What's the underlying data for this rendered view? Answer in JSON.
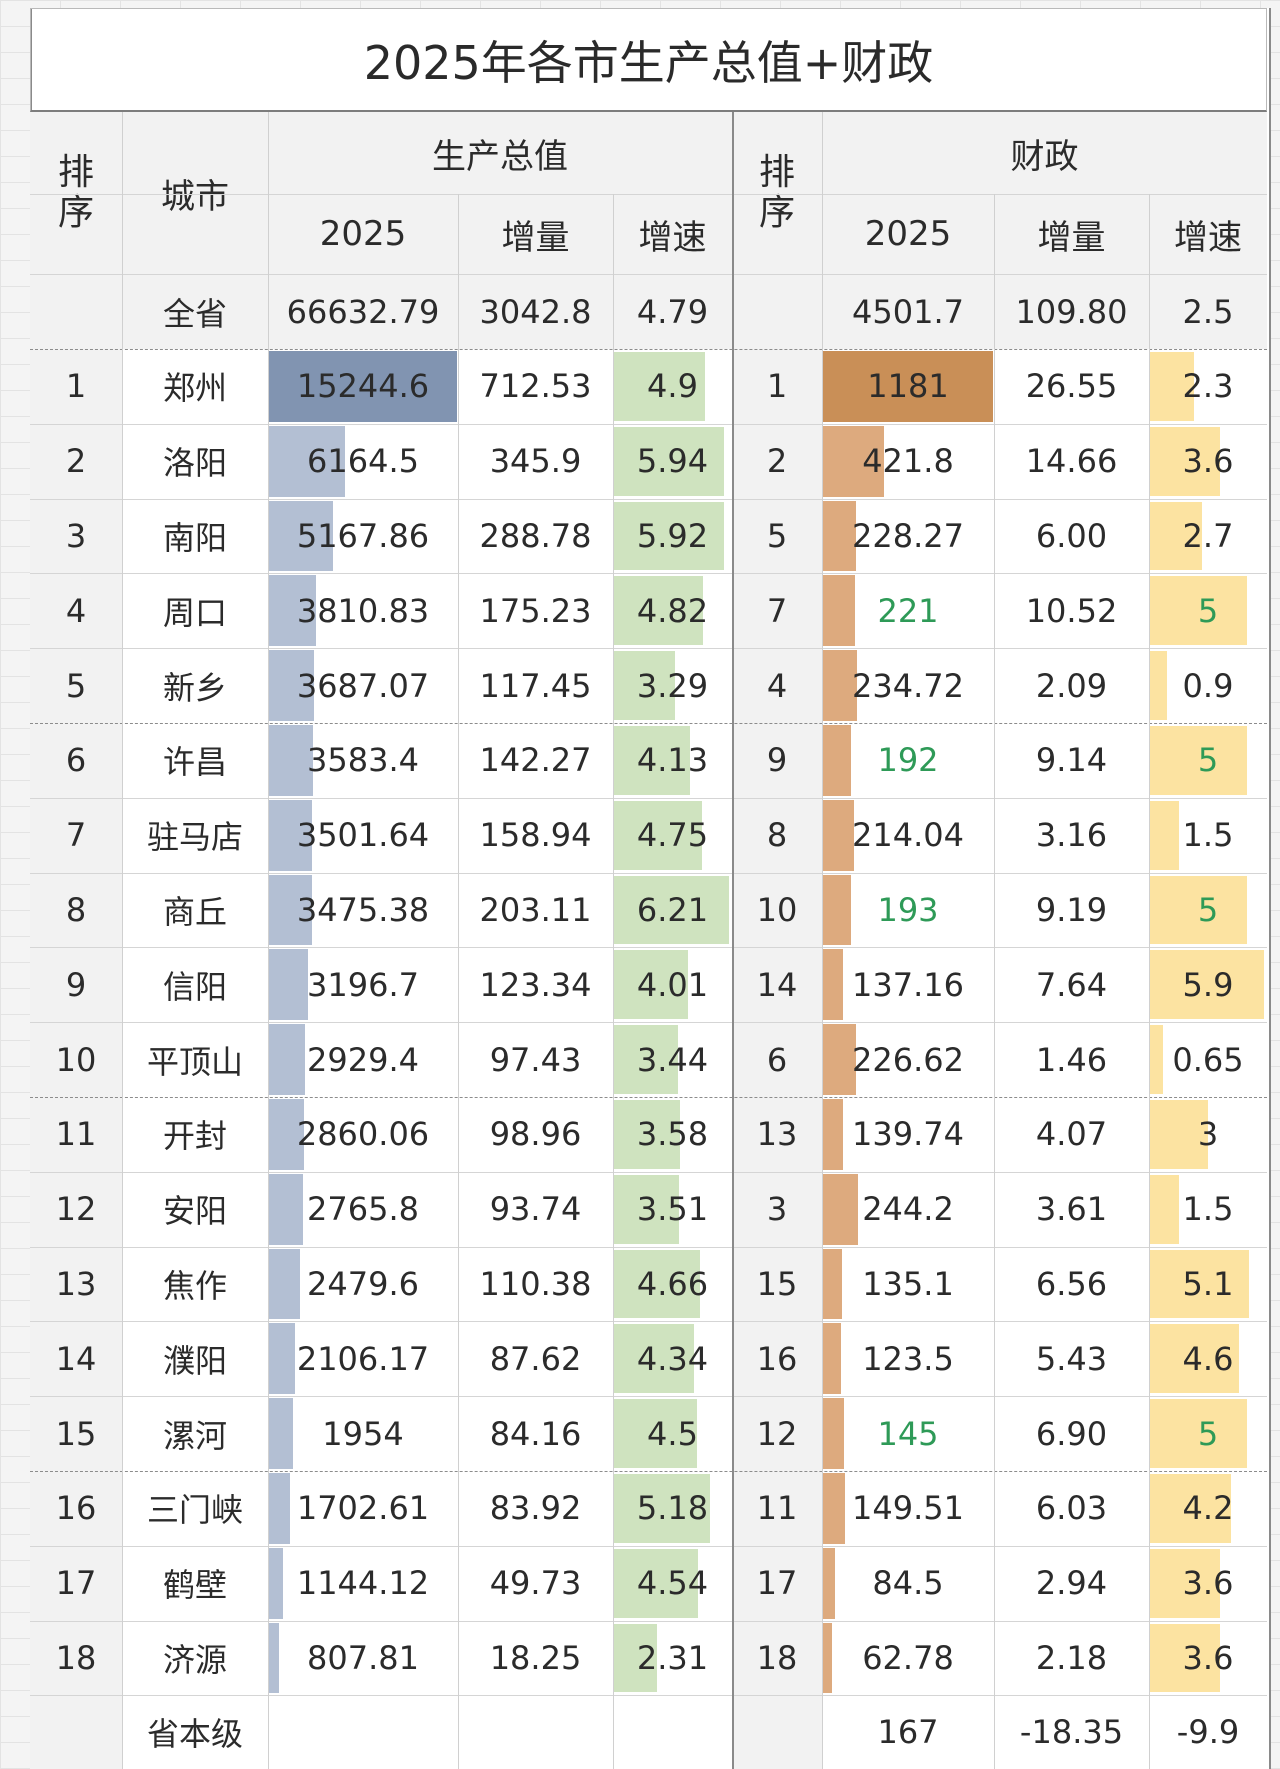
{
  "title": "2025年各市生产总值+财政",
  "header": {
    "rank": "排序",
    "city": "城市",
    "gdp_group": "生产总值",
    "fiscal_group": "财政",
    "year": "2025",
    "increment": "增量",
    "growth": "增速"
  },
  "province_total": {
    "label": "全省",
    "gdp": "66632.79",
    "gdp_inc": "3042.8",
    "gdp_growth": "4.79",
    "fiscal": "4501.7",
    "fiscal_inc": "109.80",
    "fiscal_growth": "2.5"
  },
  "rows": [
    {
      "rank": "1",
      "city": "郑州",
      "gdp": "15244.6",
      "gdp_inc": "712.53",
      "gdp_growth": "4.9",
      "f_rank": "1",
      "fiscal": "1181",
      "fiscal_inc": "26.55",
      "fiscal_growth": "2.3",
      "highlight": false
    },
    {
      "rank": "2",
      "city": "洛阳",
      "gdp": "6164.5",
      "gdp_inc": "345.9",
      "gdp_growth": "5.94",
      "f_rank": "2",
      "fiscal": "421.8",
      "fiscal_inc": "14.66",
      "fiscal_growth": "3.6",
      "highlight": false
    },
    {
      "rank": "3",
      "city": "南阳",
      "gdp": "5167.86",
      "gdp_inc": "288.78",
      "gdp_growth": "5.92",
      "f_rank": "5",
      "fiscal": "228.27",
      "fiscal_inc": "6.00",
      "fiscal_growth": "2.7",
      "highlight": false
    },
    {
      "rank": "4",
      "city": "周口",
      "gdp": "3810.83",
      "gdp_inc": "175.23",
      "gdp_growth": "4.82",
      "f_rank": "7",
      "fiscal": "221",
      "fiscal_inc": "10.52",
      "fiscal_growth": "5",
      "highlight": true
    },
    {
      "rank": "5",
      "city": "新乡",
      "gdp": "3687.07",
      "gdp_inc": "117.45",
      "gdp_growth": "3.29",
      "f_rank": "4",
      "fiscal": "234.72",
      "fiscal_inc": "2.09",
      "fiscal_growth": "0.9",
      "highlight": false
    },
    {
      "rank": "6",
      "city": "许昌",
      "gdp": "3583.4",
      "gdp_inc": "142.27",
      "gdp_growth": "4.13",
      "f_rank": "9",
      "fiscal": "192",
      "fiscal_inc": "9.14",
      "fiscal_growth": "5",
      "highlight": true
    },
    {
      "rank": "7",
      "city": "驻马店",
      "gdp": "3501.64",
      "gdp_inc": "158.94",
      "gdp_growth": "4.75",
      "f_rank": "8",
      "fiscal": "214.04",
      "fiscal_inc": "3.16",
      "fiscal_growth": "1.5",
      "highlight": false
    },
    {
      "rank": "8",
      "city": "商丘",
      "gdp": "3475.38",
      "gdp_inc": "203.11",
      "gdp_growth": "6.21",
      "f_rank": "10",
      "fiscal": "193",
      "fiscal_inc": "9.19",
      "fiscal_growth": "5",
      "highlight": true
    },
    {
      "rank": "9",
      "city": "信阳",
      "gdp": "3196.7",
      "gdp_inc": "123.34",
      "gdp_growth": "4.01",
      "f_rank": "14",
      "fiscal": "137.16",
      "fiscal_inc": "7.64",
      "fiscal_growth": "5.9",
      "highlight": false
    },
    {
      "rank": "10",
      "city": "平顶山",
      "gdp": "2929.4",
      "gdp_inc": "97.43",
      "gdp_growth": "3.44",
      "f_rank": "6",
      "fiscal": "226.62",
      "fiscal_inc": "1.46",
      "fiscal_growth": "0.65",
      "highlight": false
    },
    {
      "rank": "11",
      "city": "开封",
      "gdp": "2860.06",
      "gdp_inc": "98.96",
      "gdp_growth": "3.58",
      "f_rank": "13",
      "fiscal": "139.74",
      "fiscal_inc": "4.07",
      "fiscal_growth": "3",
      "highlight": false
    },
    {
      "rank": "12",
      "city": "安阳",
      "gdp": "2765.8",
      "gdp_inc": "93.74",
      "gdp_growth": "3.51",
      "f_rank": "3",
      "fiscal": "244.2",
      "fiscal_inc": "3.61",
      "fiscal_growth": "1.5",
      "highlight": false
    },
    {
      "rank": "13",
      "city": "焦作",
      "gdp": "2479.6",
      "gdp_inc": "110.38",
      "gdp_growth": "4.66",
      "f_rank": "15",
      "fiscal": "135.1",
      "fiscal_inc": "6.56",
      "fiscal_growth": "5.1",
      "highlight": false
    },
    {
      "rank": "14",
      "city": "濮阳",
      "gdp": "2106.17",
      "gdp_inc": "87.62",
      "gdp_growth": "4.34",
      "f_rank": "16",
      "fiscal": "123.5",
      "fiscal_inc": "5.43",
      "fiscal_growth": "4.6",
      "highlight": false
    },
    {
      "rank": "15",
      "city": "漯河",
      "gdp": "1954",
      "gdp_inc": "84.16",
      "gdp_growth": "4.5",
      "f_rank": "12",
      "fiscal": "145",
      "fiscal_inc": "6.90",
      "fiscal_growth": "5",
      "highlight": true
    },
    {
      "rank": "16",
      "city": "三门峡",
      "gdp": "1702.61",
      "gdp_inc": "83.92",
      "gdp_growth": "5.18",
      "f_rank": "11",
      "fiscal": "149.51",
      "fiscal_inc": "6.03",
      "fiscal_growth": "4.2",
      "highlight": false
    },
    {
      "rank": "17",
      "city": "鹤壁",
      "gdp": "1144.12",
      "gdp_inc": "49.73",
      "gdp_growth": "4.54",
      "f_rank": "17",
      "fiscal": "84.5",
      "fiscal_inc": "2.94",
      "fiscal_growth": "3.6",
      "highlight": false
    },
    {
      "rank": "18",
      "city": "济源",
      "gdp": "807.81",
      "gdp_inc": "18.25",
      "gdp_growth": "2.31",
      "f_rank": "18",
      "fiscal": "62.78",
      "fiscal_inc": "2.18",
      "fiscal_growth": "3.6",
      "highlight": false
    }
  ],
  "provincial_level": {
    "label": "省本级",
    "fiscal": "167",
    "fiscal_inc": "-18.35",
    "fiscal_growth": "-9.9"
  },
  "bar_scales": {
    "gdp_max": 15244.6,
    "gdp_growth_max": 6.21,
    "fiscal_max": 1181,
    "fiscal_growth_max": 5.9
  },
  "colors": {
    "gdp_bar": "#b3bfd3",
    "gdp_bar_top": "#8194b1",
    "growth_bar": "#cfe3bf",
    "fiscal_bar": "#ddaa7e",
    "fiscal_bar_top": "#c98f57",
    "fiscal_growth_bar": "#fce3a1",
    "highlight_text": "#2e9a57",
    "text": "#2b2b2b"
  }
}
